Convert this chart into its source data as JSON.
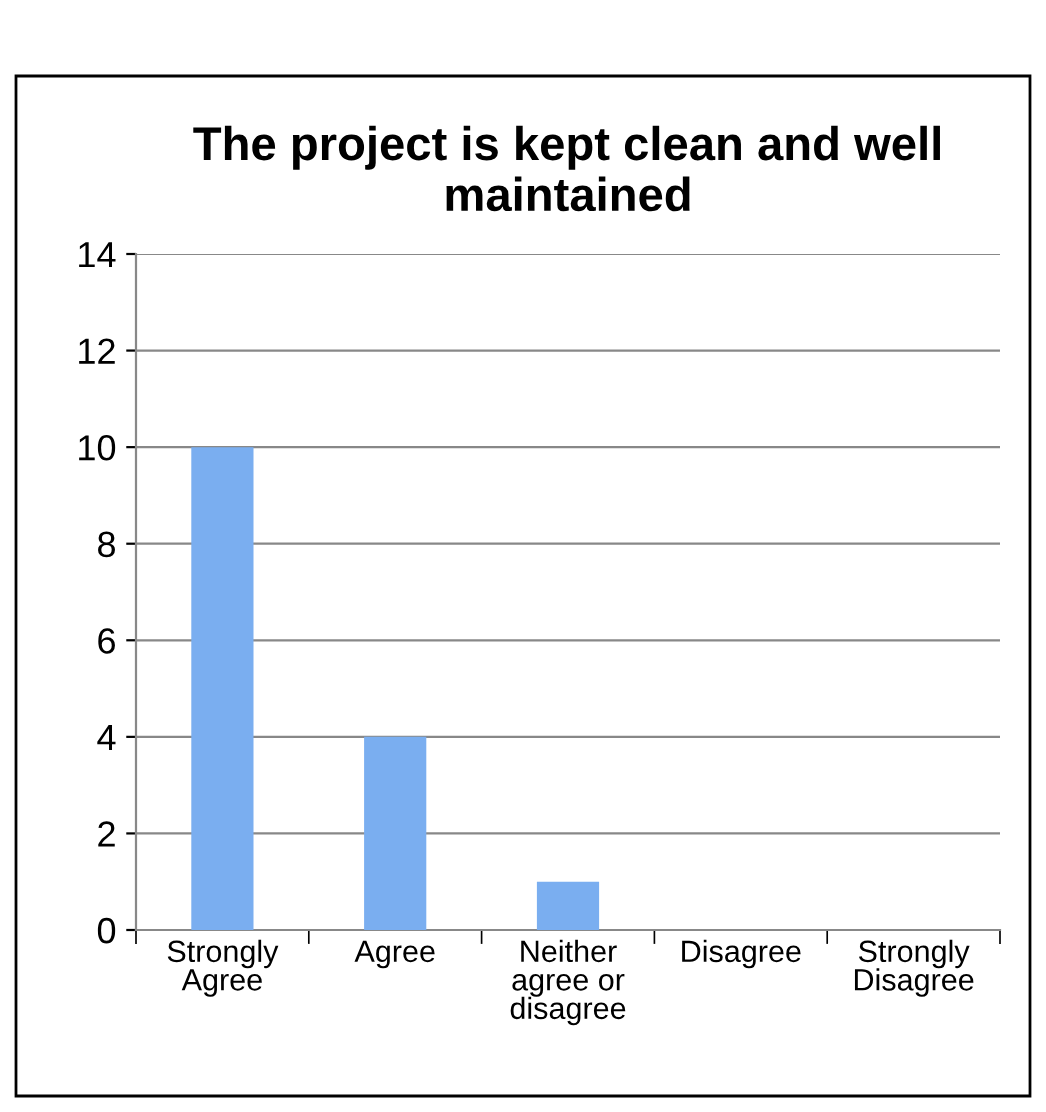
{
  "chart_data": {
    "type": "bar",
    "title": "The project is kept clean and well maintained",
    "categories": [
      "Strongly\nAgree",
      "Agree",
      "Neither\nagree or\ndisagree",
      "Disagree",
      "Strongly\nDisagree"
    ],
    "values": [
      10,
      4,
      1,
      0,
      0
    ],
    "color": "#7aaef0",
    "ylim": [
      0,
      14
    ],
    "yticks": [
      0,
      2,
      4,
      6,
      8,
      10,
      12,
      14
    ],
    "grid": "y",
    "legend": false
  }
}
